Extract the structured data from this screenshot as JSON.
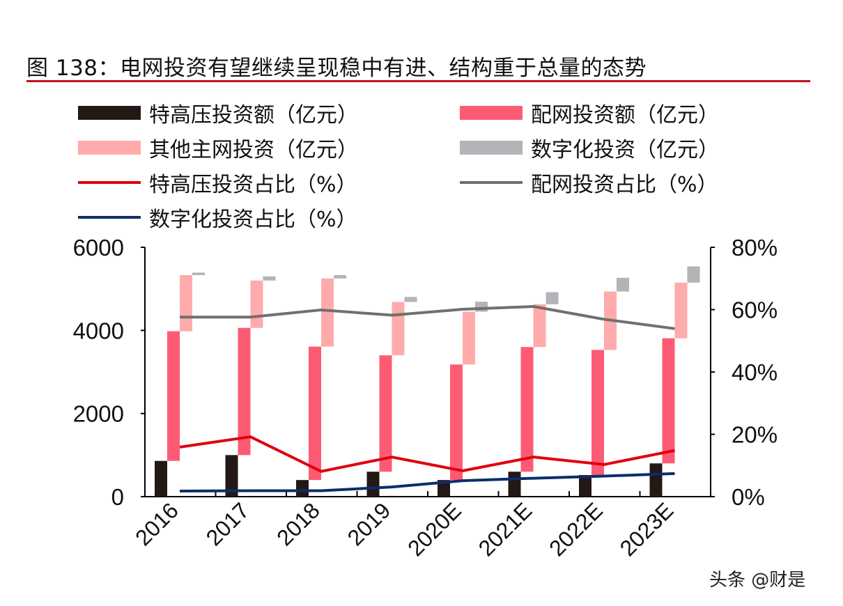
{
  "title": "图 138：电网投资有望继续呈现稳中有进、结构重于总量的态势",
  "watermark": "头条 @财是",
  "chart_data": {
    "type": "bar",
    "title": "图 138：电网投资有望继续呈现稳中有进、结构重于总量的态势",
    "categories": [
      "2016",
      "2017",
      "2018",
      "2019",
      "2020E",
      "2021E",
      "2022E",
      "2023E"
    ],
    "left_axis": {
      "ylim": [
        0,
        6000
      ],
      "ticks": [
        "0",
        "2000",
        "4000",
        "6000"
      ]
    },
    "right_axis": {
      "ylim": [
        0,
        80
      ],
      "ticks": [
        "0%",
        "20%",
        "40%",
        "60%",
        "80%"
      ]
    },
    "grid": false,
    "legend_position": "top",
    "bar_series": [
      {
        "name": "特高压投资额（亿元）",
        "color": "#231815",
        "values": [
          860,
          1000,
          400,
          600,
          400,
          600,
          520,
          800
        ]
      },
      {
        "name": "配网投资额（亿元）",
        "color": "#fd5b73",
        "values": [
          3120,
          3060,
          3210,
          2800,
          2780,
          3000,
          3010,
          3010
        ]
      },
      {
        "name": "其他主网投资（亿元）",
        "color": "#ffabab",
        "values": [
          1350,
          1140,
          1640,
          1285,
          1270,
          1030,
          1405,
          1340
        ]
      },
      {
        "name": "数字化投资（亿元）",
        "color": "#b3b3b8",
        "values": [
          60,
          100,
          80,
          120,
          240,
          290,
          330,
          390
        ]
      }
    ],
    "line_series": [
      {
        "name": "特高压投资占比（%）",
        "color": "#e0000f",
        "values": [
          15.9,
          19.2,
          8.1,
          12.7,
          8.3,
          12.7,
          10.3,
          14.8
        ]
      },
      {
        "name": "配网投资占比（%）",
        "color": "#707070",
        "values": [
          57.6,
          57.6,
          59.9,
          58.2,
          60.1,
          61.0,
          56.9,
          53.9
        ]
      },
      {
        "name": "数字化投资占比（%）",
        "color": "#0b2d6b",
        "values": [
          1.8,
          1.9,
          1.9,
          3.1,
          5.1,
          5.9,
          6.6,
          7.4
        ]
      }
    ]
  }
}
